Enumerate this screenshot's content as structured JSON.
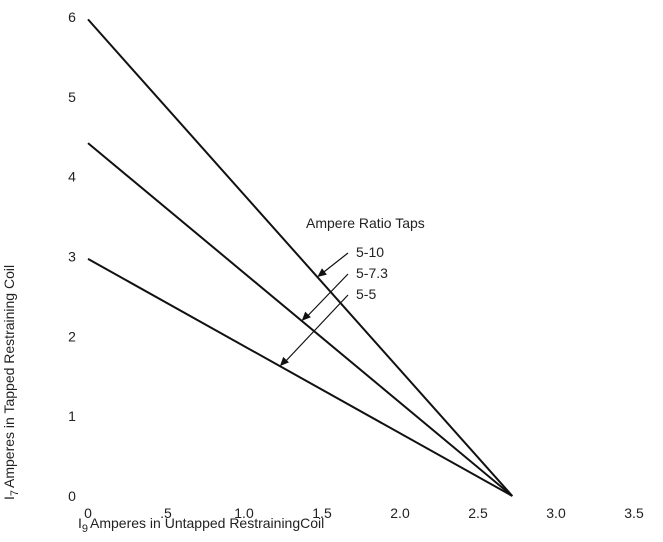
{
  "chart_data": {
    "type": "line",
    "xlabel": "I9 Amperes in Untapped RestrainingCoil",
    "xlabel_symbol": "I",
    "xlabel_subscript": "9",
    "xlabel_text": "Amperes in Untapped RestrainingCoil",
    "ylabel": "I7 Amperes in Tapped Restraining Coil",
    "ylabel_symbol": "I",
    "ylabel_subscript": "7",
    "ylabel_text": "Amperes in Tapped Restraining Coil",
    "xlim": [
      0,
      3.5
    ],
    "ylim": [
      0,
      6
    ],
    "x_ticks": [
      0,
      0.5,
      1.0,
      1.5,
      2.0,
      2.5,
      3.0,
      3.5
    ],
    "x_tick_labels": [
      "0",
      ".5",
      "1.0",
      "1.5",
      "2.0",
      "2.5",
      "3.0",
      "3.5"
    ],
    "y_ticks": [
      0,
      1,
      2,
      3,
      4,
      5,
      6
    ],
    "y_tick_labels": [
      "0",
      "1",
      "2",
      "3",
      "4",
      "5",
      "6"
    ],
    "grid": false,
    "legend_title": "Ampere Ratio Taps",
    "series": [
      {
        "name": "5-10",
        "x": [
          0,
          2.72
        ],
        "y": [
          5.97,
          0
        ],
        "label_at_x": 1.47
      },
      {
        "name": "5-7.3",
        "x": [
          0,
          2.72
        ],
        "y": [
          4.42,
          0
        ],
        "label_at_x": 1.37
      },
      {
        "name": "5-5",
        "x": [
          0,
          2.72
        ],
        "y": [
          2.97,
          0
        ],
        "label_at_x": 1.23
      }
    ]
  }
}
